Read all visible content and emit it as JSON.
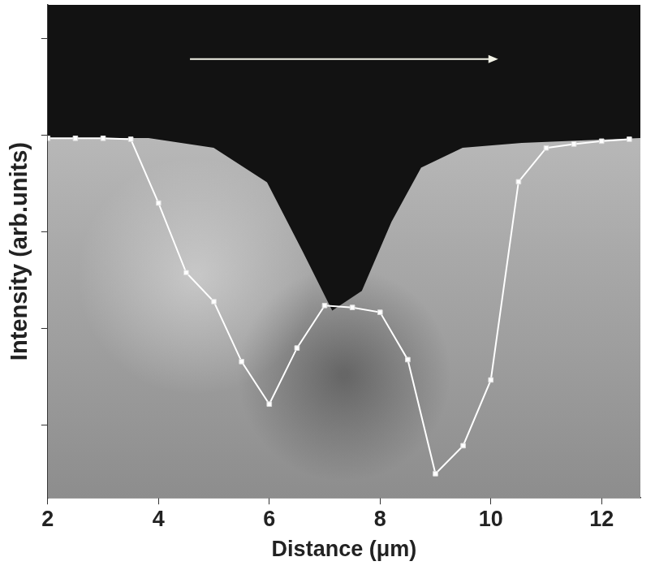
{
  "chart_data": {
    "type": "line",
    "x_label": "Distance (μm)",
    "y_label": "Intensity (arb.units)",
    "x": [
      2,
      2.5,
      3,
      3.5,
      4,
      4.5,
      5,
      5.5,
      6,
      6.5,
      7,
      7.5,
      8,
      8.5,
      9,
      9.5,
      10,
      10.5,
      11,
      11.5,
      12,
      12.5
    ],
    "values": [
      3.97,
      3.97,
      3.97,
      3.96,
      3.3,
      2.58,
      2.28,
      1.66,
      1.22,
      1.8,
      2.24,
      2.22,
      2.17,
      1.68,
      0.5,
      0.79,
      1.47,
      3.52,
      3.87,
      3.91,
      3.94,
      3.96
    ],
    "color": "#ffffff",
    "marker": "square",
    "line_style": "solid",
    "xlim": [
      2,
      12.7
    ],
    "xticks": [
      2,
      4,
      6,
      8,
      10,
      12
    ],
    "ylim": [
      0.25,
      5.35
    ],
    "yticks": [
      1,
      2,
      3,
      4,
      5
    ],
    "grid": false,
    "tick_labels": "x"
  }
}
